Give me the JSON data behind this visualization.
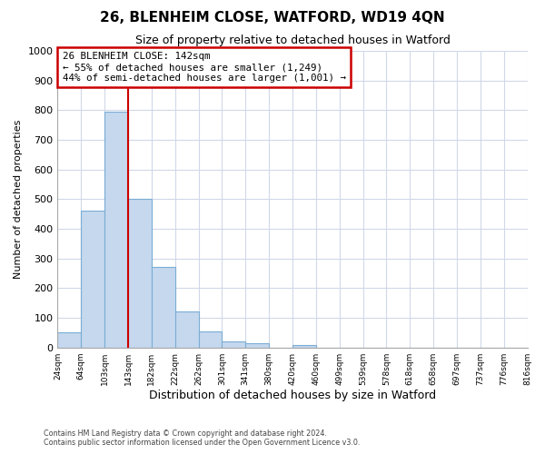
{
  "title": "26, BLENHEIM CLOSE, WATFORD, WD19 4QN",
  "subtitle": "Size of property relative to detached houses in Watford",
  "xlabel": "Distribution of detached houses by size in Watford",
  "ylabel": "Number of detached properties",
  "bin_labels": [
    "24sqm",
    "64sqm",
    "103sqm",
    "143sqm",
    "182sqm",
    "222sqm",
    "262sqm",
    "301sqm",
    "341sqm",
    "380sqm",
    "420sqm",
    "460sqm",
    "499sqm",
    "539sqm",
    "578sqm",
    "618sqm",
    "658sqm",
    "697sqm",
    "737sqm",
    "776sqm",
    "816sqm"
  ],
  "bar_values": [
    50,
    460,
    795,
    500,
    270,
    120,
    55,
    20,
    15,
    0,
    8,
    0,
    0,
    0,
    0,
    0,
    0,
    0,
    0,
    0
  ],
  "bar_color": "#c5d8ee",
  "bar_edge_color": "#7aadd4",
  "property_line_label": "26 BLENHEIM CLOSE: 142sqm",
  "annotation_line1": "← 55% of detached houses are smaller (1,249)",
  "annotation_line2": "44% of semi-detached houses are larger (1,001) →",
  "annotation_box_color": "#ffffff",
  "annotation_box_edge_color": "#cc0000",
  "vline_color": "#cc0000",
  "ylim": [
    0,
    1000
  ],
  "yticks": [
    0,
    100,
    200,
    300,
    400,
    500,
    600,
    700,
    800,
    900,
    1000
  ],
  "footer1": "Contains HM Land Registry data © Crown copyright and database right 2024.",
  "footer2": "Contains public sector information licensed under the Open Government Licence v3.0.",
  "background_color": "#ffffff",
  "grid_color": "#d0d8e8"
}
